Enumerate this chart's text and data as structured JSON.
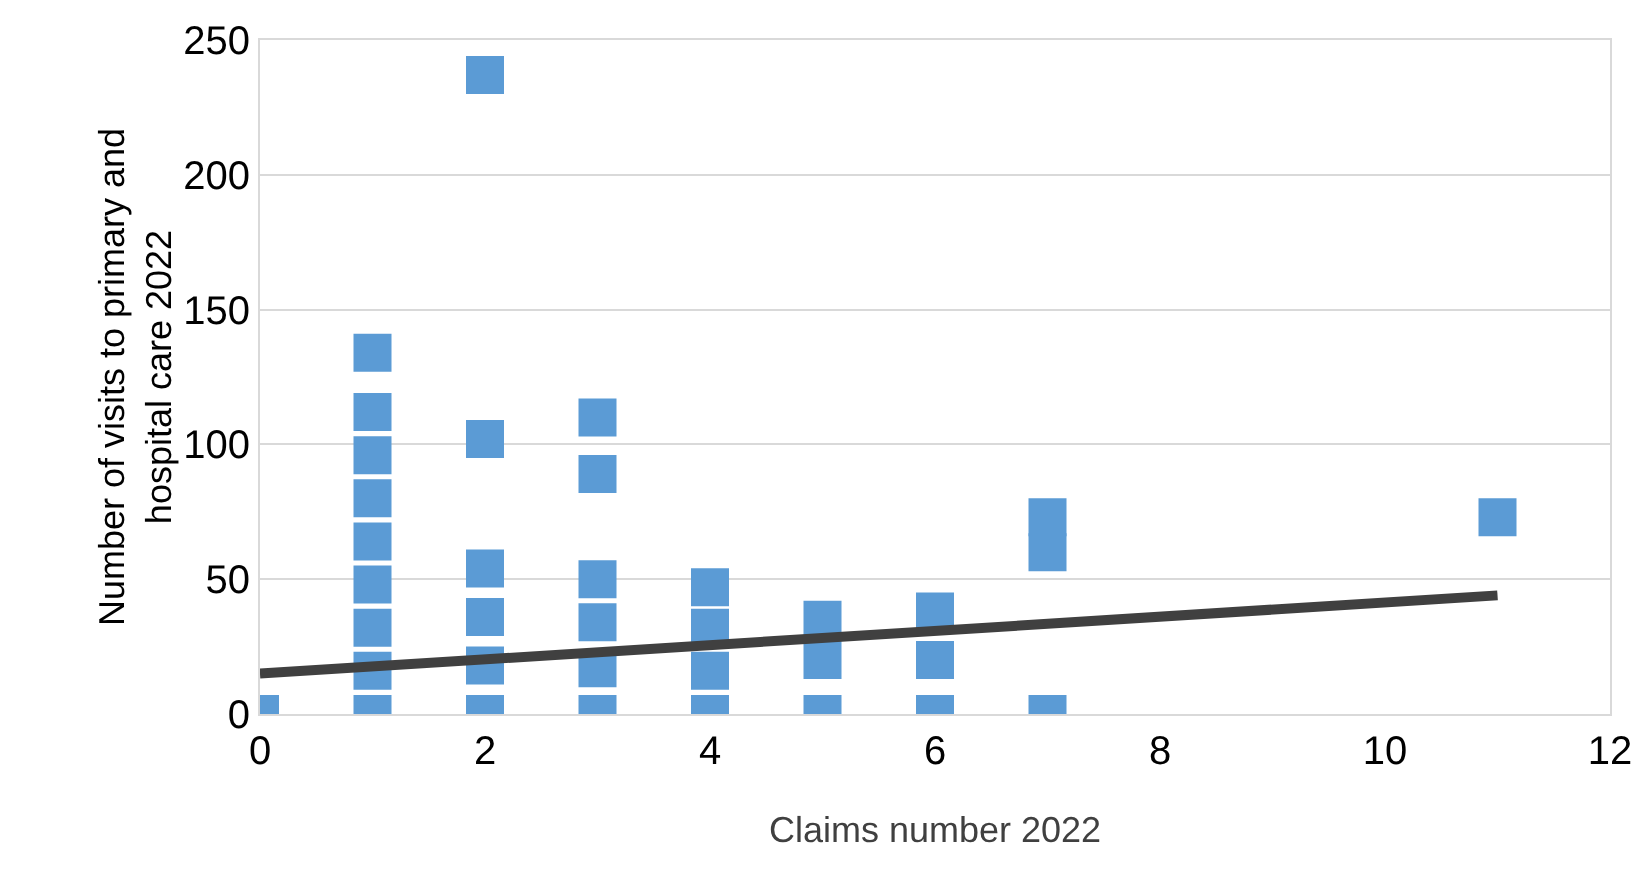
{
  "chart_data": {
    "type": "scatter",
    "xlabel": "Claims number 2022",
    "ylabel": "Number of visits to primary and hospital care 2022",
    "xlim": [
      0,
      12
    ],
    "xticks": [
      0,
      2,
      4,
      6,
      8,
      10,
      12
    ],
    "ylim": [
      0,
      250
    ],
    "yticks": [
      0,
      50,
      100,
      150,
      200,
      250
    ],
    "grid": "y",
    "legend": false,
    "marker": "square",
    "series": [
      {
        "color": "#5b9bd5",
        "x": [
          0,
          1,
          1,
          1,
          1,
          1,
          1,
          1,
          1,
          1,
          2,
          2,
          2,
          2,
          2,
          2,
          3,
          3,
          3,
          3,
          3,
          3,
          4,
          4,
          4,
          4,
          5,
          5,
          5,
          6,
          6,
          6,
          7,
          7,
          7,
          11
        ],
        "values": [
          0,
          0,
          16,
          32,
          48,
          64,
          80,
          96,
          112,
          134,
          0,
          18,
          36,
          54,
          102,
          237,
          0,
          17,
          34,
          50,
          89,
          110,
          0,
          16,
          32,
          47,
          0,
          20,
          35,
          0,
          20,
          38,
          0,
          60,
          73,
          73
        ]
      },
      {
        "type": "line",
        "color": "#404040",
        "marker": "none",
        "line_style": "solid",
        "x": [
          0,
          11
        ],
        "values": [
          15,
          44
        ]
      }
    ]
  }
}
